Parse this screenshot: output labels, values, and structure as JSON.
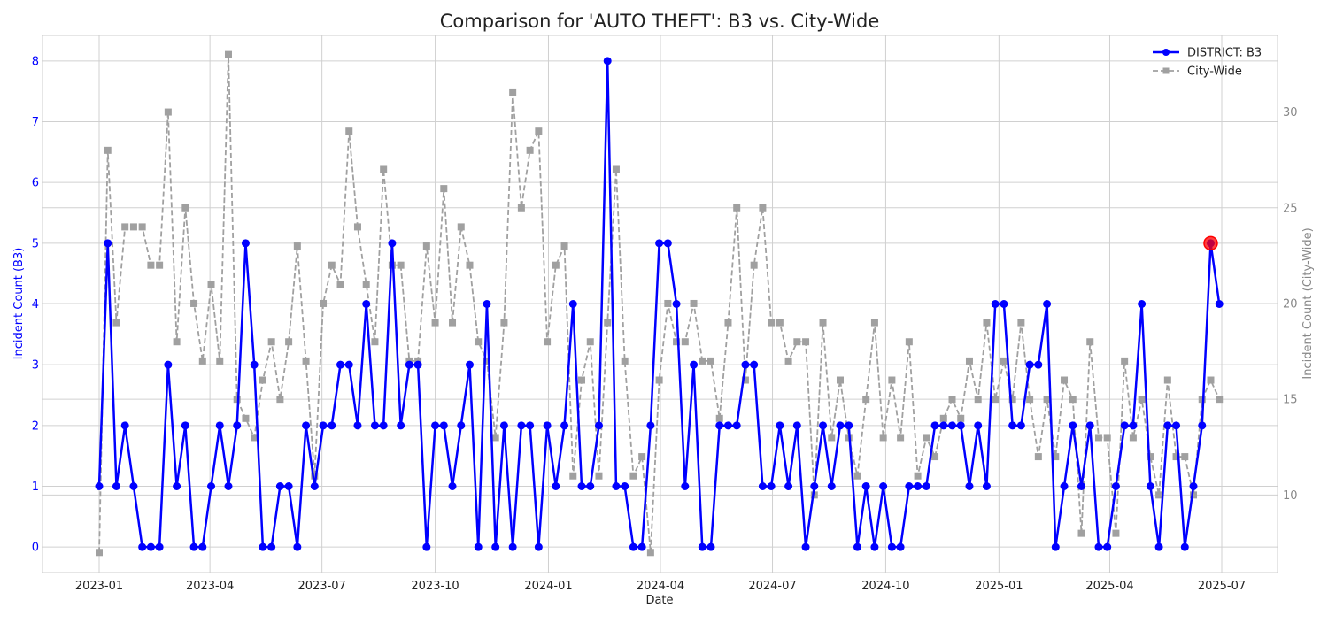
{
  "chart_data": {
    "type": "line",
    "title": "Comparison for 'AUTO THEFT': B3 vs. City-Wide",
    "xlabel": "Date",
    "ylabel_left": "Incident Count (B3)",
    "ylabel_right": "Incident Count (City-Wide)",
    "grid": true,
    "legend_placement": "top-right",
    "x_start": "2023-01-01",
    "x_interval": "7 days",
    "x_tick_labels": [
      "2023-01",
      "2023-04",
      "2023-07",
      "2023-10",
      "2024-01",
      "2024-04",
      "2024-07",
      "2024-10",
      "2025-01",
      "2025-04",
      "2025-07"
    ],
    "x_tick_dates": [
      "2023-01-01",
      "2023-04-01",
      "2023-07-01",
      "2023-10-01",
      "2024-01-01",
      "2024-04-01",
      "2024-07-01",
      "2024-10-01",
      "2025-01-01",
      "2025-04-01",
      "2025-07-01"
    ],
    "y_left_ticks": [
      0,
      1,
      2,
      3,
      4,
      5,
      6,
      7,
      8
    ],
    "y_left_range": [
      -0.42,
      8.42
    ],
    "y_right_ticks": [
      10,
      15,
      20,
      25,
      30
    ],
    "y_right_range": [
      5.95,
      34.0
    ],
    "series": [
      {
        "name": "DISTRICT: B3",
        "axis": "left",
        "color": "#0000ff",
        "style": "solid",
        "marker": "circle",
        "values": [
          1,
          5,
          1,
          2,
          1,
          0,
          0,
          0,
          3,
          1,
          2,
          0,
          0,
          1,
          2,
          1,
          2,
          5,
          3,
          0,
          0,
          1,
          1,
          0,
          2,
          1,
          2,
          2,
          3,
          3,
          2,
          4,
          2,
          2,
          5,
          2,
          3,
          3,
          0,
          2,
          2,
          1,
          2,
          3,
          0,
          4,
          0,
          2,
          0,
          2,
          2,
          0,
          2,
          1,
          2,
          4,
          1,
          1,
          2,
          8,
          1,
          1,
          0,
          0,
          2,
          5,
          5,
          4,
          1,
          3,
          0,
          0,
          2,
          2,
          2,
          3,
          3,
          1,
          1,
          2,
          1,
          2,
          0,
          1,
          2,
          1,
          2,
          2,
          0,
          1,
          0,
          1,
          0,
          0,
          1,
          1,
          1,
          2,
          2,
          2,
          2,
          1,
          2,
          1,
          4,
          4,
          2,
          2,
          3,
          3,
          4,
          0,
          1,
          2,
          1,
          2,
          0,
          0,
          1,
          2,
          2,
          4,
          1,
          0,
          2,
          2,
          0,
          1,
          2,
          5,
          4
        ]
      },
      {
        "name": "City-Wide",
        "axis": "right",
        "color": "#999999",
        "style": "dashed",
        "marker": "square",
        "values": [
          7,
          28,
          19,
          24,
          24,
          24,
          22,
          22,
          30,
          18,
          25,
          20,
          17,
          21,
          17,
          33,
          15,
          14,
          13,
          16,
          18,
          15,
          18,
          23,
          17,
          11,
          20,
          22,
          21,
          29,
          24,
          21,
          18,
          27,
          22,
          22,
          17,
          17,
          23,
          19,
          26,
          19,
          24,
          22,
          18,
          17,
          13,
          19,
          31,
          25,
          28,
          29,
          18,
          22,
          23,
          11,
          16,
          18,
          11,
          19,
          27,
          17,
          11,
          12,
          7,
          16,
          20,
          18,
          18,
          20,
          17,
          17,
          14,
          19,
          25,
          16,
          22,
          25,
          19,
          19,
          17,
          18,
          18,
          10,
          19,
          13,
          16,
          13,
          11,
          15,
          19,
          13,
          16,
          13,
          18,
          11,
          13,
          12,
          14,
          15,
          14,
          17,
          15,
          19,
          15,
          17,
          15,
          19,
          15,
          12,
          15,
          12,
          16,
          15,
          8,
          18,
          13,
          13,
          8,
          17,
          13,
          15,
          12,
          10,
          16,
          12,
          12,
          10,
          15,
          16,
          15
        ]
      }
    ],
    "highlight": {
      "series": "DISTRICT: B3",
      "x": "2025-06-22",
      "value": 5,
      "color": "#ff0000"
    }
  }
}
